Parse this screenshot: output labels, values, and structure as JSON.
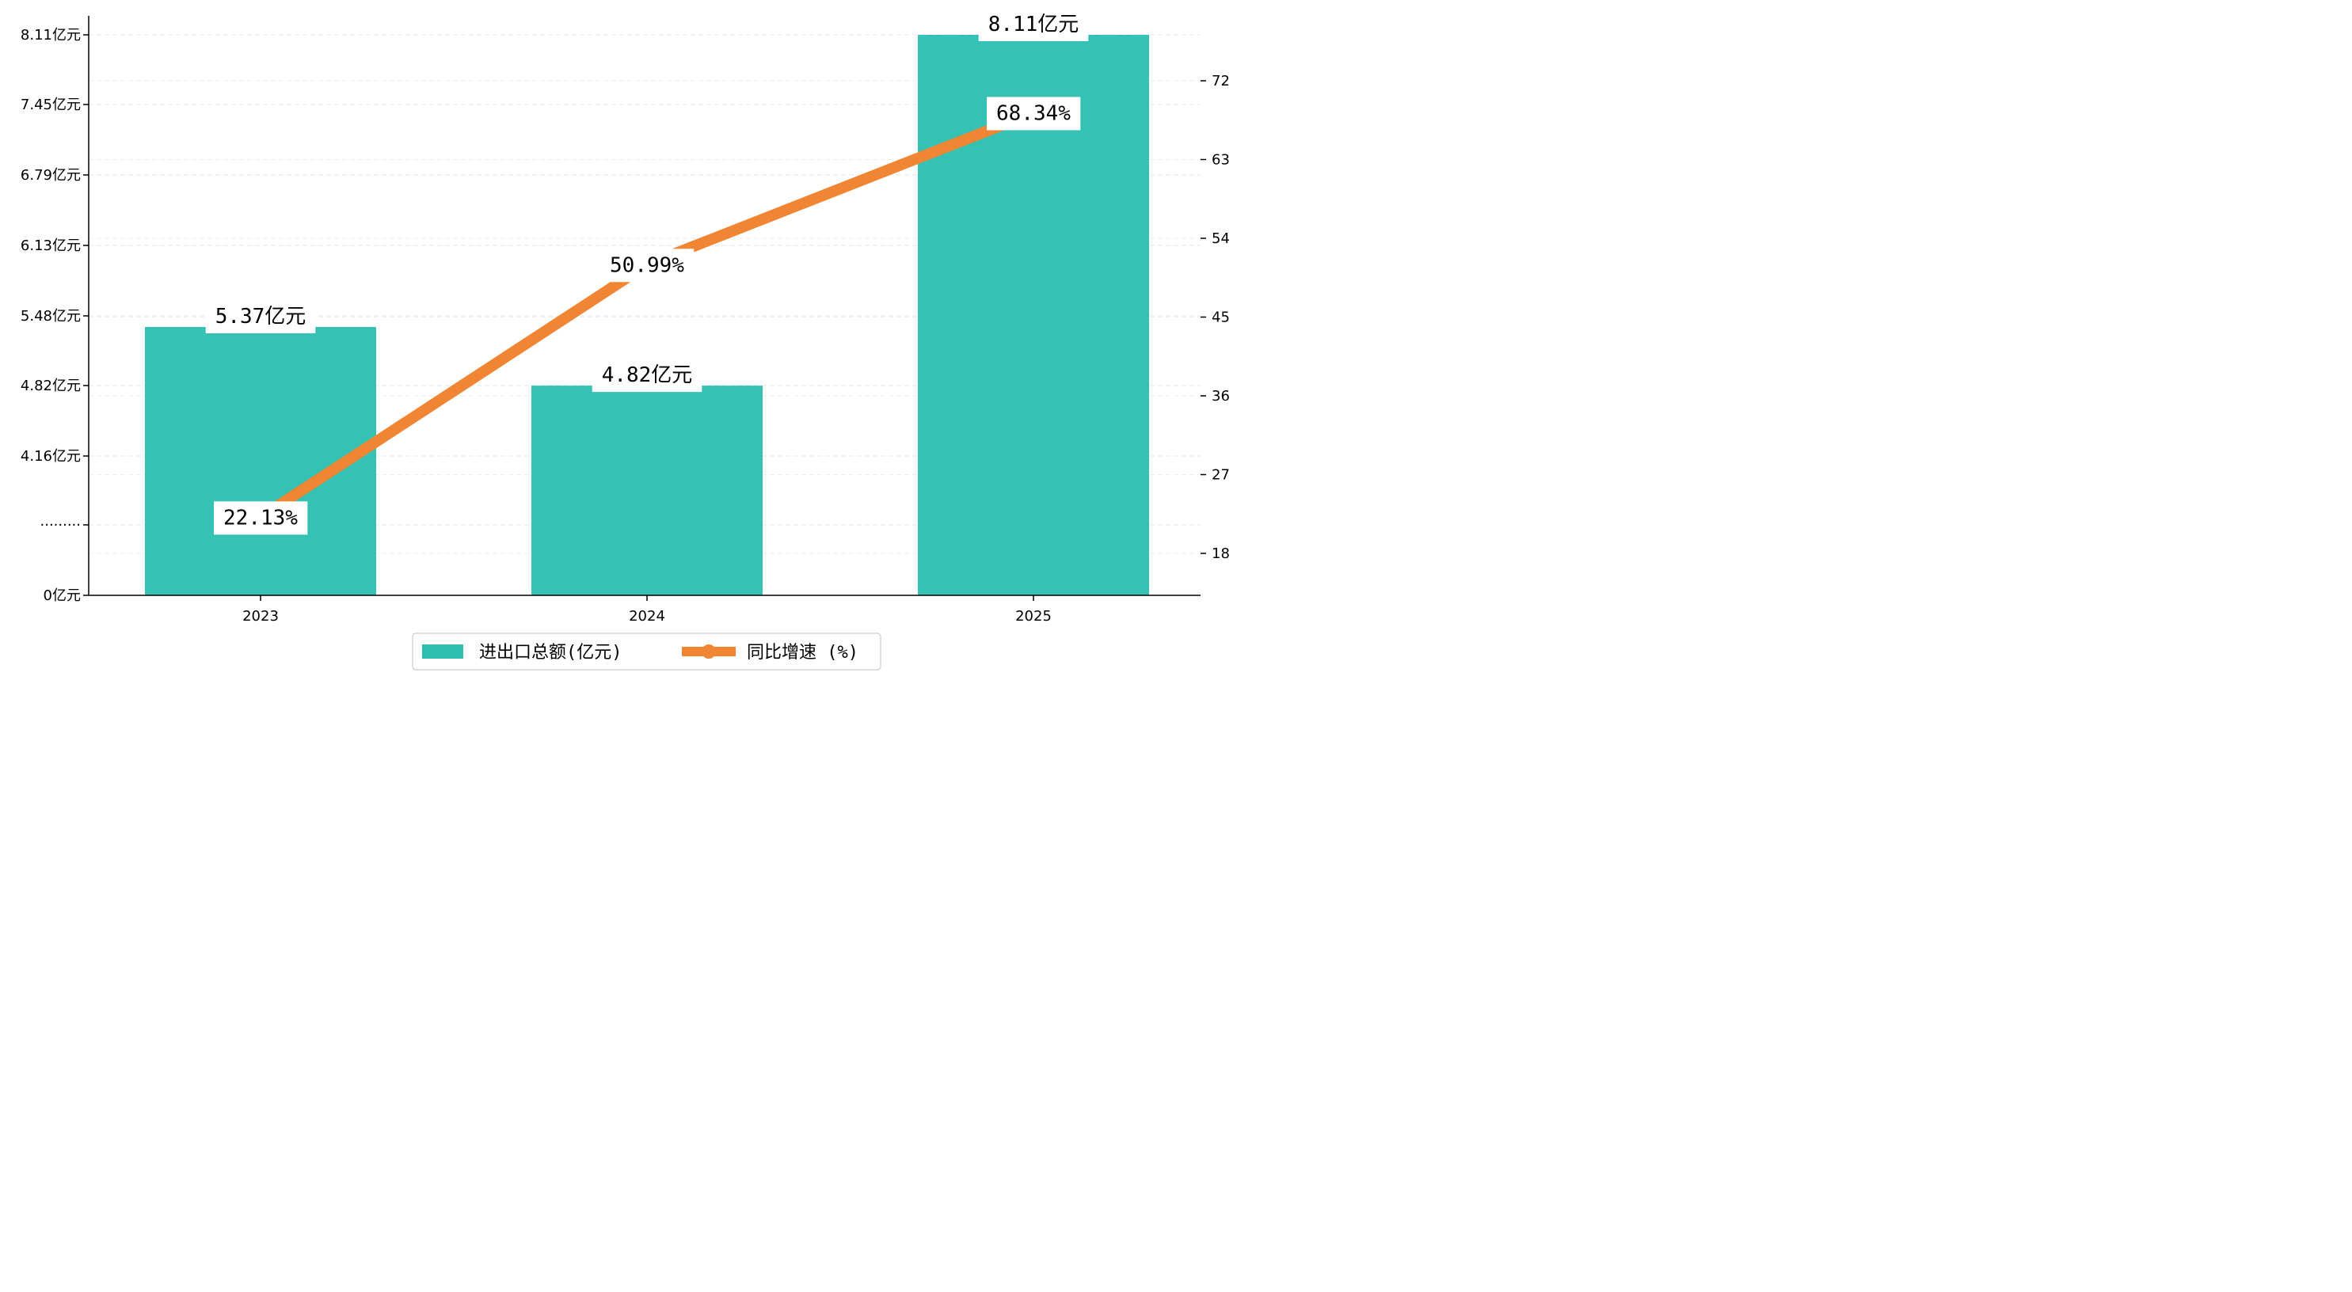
{
  "chart_data": {
    "type": "bar+line",
    "categories": [
      "2023",
      "2024",
      "2025"
    ],
    "series": [
      {
        "name": "进出口总额(亿元)",
        "type": "bar",
        "axis": "left",
        "values": [
          5.37,
          4.82,
          8.11
        ],
        "labels": [
          "5.37亿元",
          "4.82亿元",
          "8.11亿元"
        ],
        "color": "#2ebfb1"
      },
      {
        "name": "同比增速 (%)",
        "type": "line",
        "axis": "right",
        "values": [
          22.13,
          50.99,
          68.34
        ],
        "labels": [
          "22.13%",
          "50.99%",
          "68.34%"
        ],
        "color": "#f08633"
      }
    ],
    "left_axis": {
      "tick_labels": [
        "0亿元",
        "·········",
        "4.16亿元",
        "4.82亿元",
        "5.48亿元",
        "6.13亿元",
        "6.79亿元",
        "7.45亿元",
        "8.11亿元"
      ]
    },
    "right_axis": {
      "range": [
        13.2,
        77.6
      ],
      "ticks": [
        18,
        27,
        36,
        45,
        54,
        63,
        72
      ]
    },
    "legend": {
      "position": "bottom-center"
    },
    "grid": "horizontal dashed"
  }
}
